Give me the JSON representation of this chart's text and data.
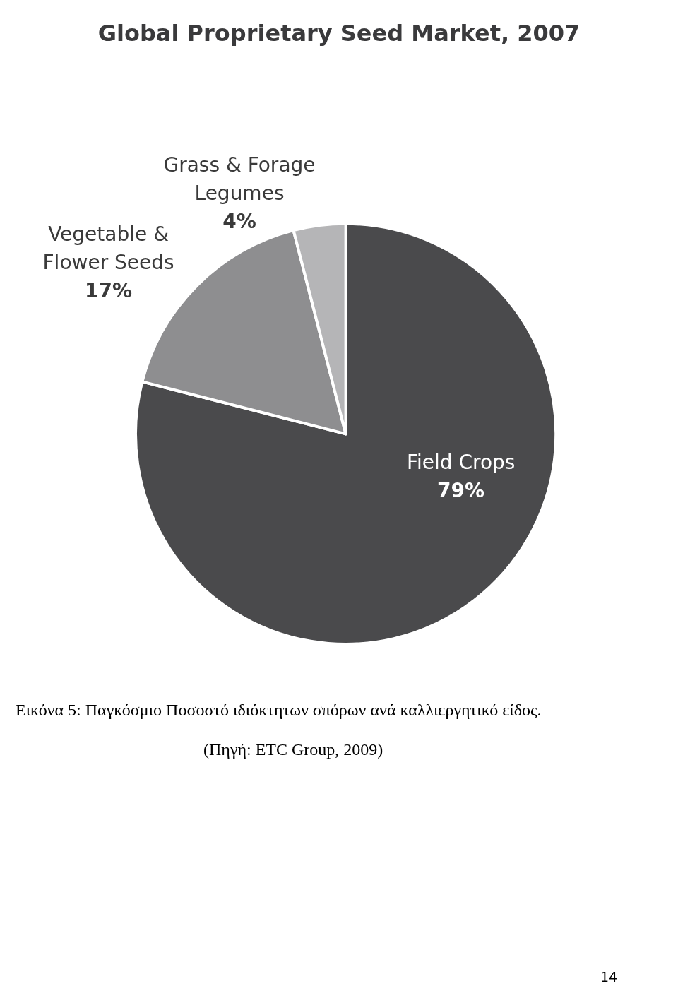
{
  "chart_data": {
    "type": "pie",
    "title": "Global Proprietary Seed Market, 2007",
    "categories": [
      "Field Crops",
      "Vegetable & Flower Seeds",
      "Grass & Forage Legumes"
    ],
    "values": [
      79,
      17,
      4
    ],
    "value_labels": [
      "79%",
      "17%",
      "4%"
    ],
    "colors": [
      "#4a4a4c",
      "#8e8e90",
      "#b5b5b7"
    ],
    "legend": false,
    "annotations": [
      "Εικόνα 5: Παγκόσμιο Ποσοστό ιδιόκτητων σπόρων ανά καλλιεργητικό είδος.",
      "(Πηγή: ETC Group, 2009)",
      "14"
    ]
  }
}
